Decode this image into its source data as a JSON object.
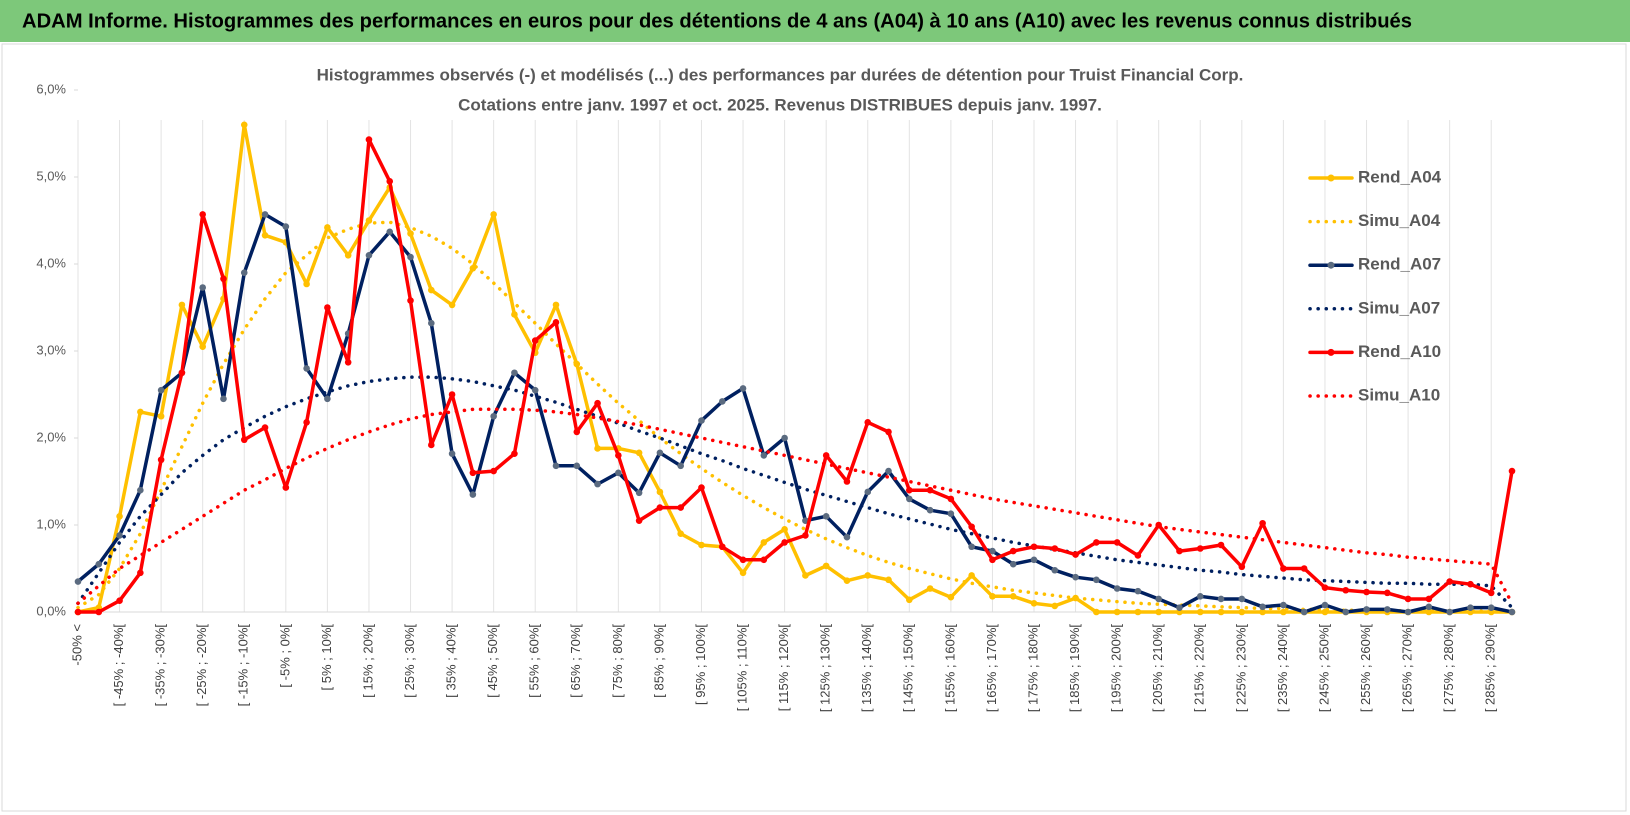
{
  "header": {
    "title": "ADAM Informe. Histogrammes des performances en euros pour des détentions de 4 ans (A04) à 10 ans (A10) avec les revenus connus distribués"
  },
  "chart_data": {
    "type": "line",
    "title": "Histogrammes observés (-) et modélisés (...) des performances par durées de détention pour Truist Financial Corp.",
    "subtitle": "Cotations entre janv. 1997 et oct. 2025.  Revenus DISTRIBUES depuis janv. 1997.",
    "categories": [
      "-50% <",
      null,
      "[ -45% ; -40%[",
      null,
      "[ -35% ; -30%[",
      null,
      "[ -25% ; -20%[",
      null,
      "[ -15% ; -10%[",
      null,
      "[ -5% ; 0%[",
      null,
      "[ 5% ; 10%[",
      null,
      "[ 15% ; 20%[",
      null,
      "[ 25% ; 30%[",
      null,
      "[ 35% ; 40%[",
      null,
      "[ 45% ; 50%[",
      null,
      "[ 55% ; 60%[",
      null,
      "[ 65% ; 70%[",
      null,
      "[ 75% ; 80%[",
      null,
      "[ 85% ; 90%[",
      null,
      "[ 95% ; 100%[",
      null,
      "[ 105% ; 110%[",
      null,
      "[ 115% ; 120%[",
      null,
      "[ 125% ; 130%[",
      null,
      "[ 135% ; 140%[",
      null,
      "[ 145% ; 150%[",
      null,
      "[ 155% ; 160%[",
      null,
      "[ 165% ; 170%[",
      null,
      "[ 175% ; 180%[",
      null,
      "[ 185% ; 190%[",
      null,
      "[ 195% ; 200%[",
      null,
      "[ 205% ; 210%[",
      null,
      "[ 215% ; 220%[",
      null,
      "[ 225% ; 230%[",
      null,
      "[ 235% ; 240%[",
      null,
      "[ 245% ; 250%[",
      null,
      "[ 255% ; 260%[",
      null,
      "[ 265% ; 270%[",
      null,
      "[ 275% ; 280%[",
      null,
      "[ 285% ; 290%[",
      null
    ],
    "series": [
      {
        "name": "Rend_A04",
        "color": "#FFC000",
        "style": "solid",
        "markers": true,
        "values": [
          0,
          0.05,
          1.1,
          2.3,
          2.25,
          3.53,
          3.05,
          3.6,
          5.6,
          4.33,
          4.25,
          3.77,
          4.42,
          4.1,
          4.5,
          4.88,
          4.35,
          3.7,
          3.53,
          3.95,
          4.57,
          3.42,
          2.98,
          3.53,
          2.85,
          1.88,
          1.88,
          1.83,
          1.38,
          0.9,
          0.77,
          0.75,
          0.45,
          0.8,
          0.95,
          0.42,
          0.53,
          0.36,
          0.42,
          0.37,
          0.14,
          0.27,
          0.17,
          0.42,
          0.18,
          0.18,
          0.1,
          0.07,
          0.16,
          0,
          0,
          0,
          0,
          0,
          0,
          0,
          0,
          0,
          0,
          0,
          0,
          0,
          0,
          0,
          0,
          0,
          0,
          0,
          0,
          0
        ]
      },
      {
        "name": "Simu_A04",
        "color": "#FFC000",
        "style": "dotted",
        "markers": false,
        "values": [
          0.05,
          0.2,
          0.5,
          0.9,
          1.4,
          1.9,
          2.4,
          2.85,
          3.25,
          3.6,
          3.9,
          4.1,
          4.3,
          4.4,
          4.47,
          4.48,
          4.42,
          4.32,
          4.18,
          4.0,
          3.78,
          3.55,
          3.32,
          3.08,
          2.85,
          2.62,
          2.4,
          2.2,
          2.0,
          1.82,
          1.65,
          1.49,
          1.34,
          1.2,
          1.07,
          0.95,
          0.84,
          0.74,
          0.65,
          0.57,
          0.5,
          0.44,
          0.38,
          0.33,
          0.29,
          0.25,
          0.22,
          0.19,
          0.16,
          0.14,
          0.12,
          0.1,
          0.09,
          0.08,
          0.07,
          0.06,
          0.05,
          0.04,
          0.04,
          0.03,
          0.03,
          0.02,
          0.02,
          0.02,
          0.01,
          0.01,
          0.01,
          0.01,
          0.01,
          0.01
        ]
      },
      {
        "name": "Rend_A07",
        "color": "#002060",
        "style": "solid",
        "markers": true,
        "values": [
          0.35,
          0.55,
          0.88,
          1.4,
          2.55,
          2.75,
          3.73,
          2.45,
          3.9,
          4.57,
          4.43,
          2.8,
          2.45,
          3.2,
          4.1,
          4.37,
          4.08,
          3.32,
          1.82,
          1.35,
          2.25,
          2.75,
          2.55,
          1.68,
          1.68,
          1.47,
          1.6,
          1.37,
          1.83,
          1.68,
          2.2,
          2.42,
          2.57,
          1.8,
          2.0,
          1.05,
          1.1,
          0.86,
          1.38,
          1.62,
          1.3,
          1.17,
          1.13,
          0.75,
          0.7,
          0.55,
          0.6,
          0.48,
          0.4,
          0.37,
          0.27,
          0.24,
          0.15,
          0.05,
          0.18,
          0.15,
          0.15,
          0.06,
          0.08,
          0,
          0.08,
          0,
          0.03,
          0.03,
          0,
          0.06,
          0,
          0.05,
          0.05,
          0
        ]
      },
      {
        "name": "Simu_A07",
        "color": "#002060",
        "style": "dotted",
        "markers": false,
        "values": [
          0.1,
          0.45,
          0.8,
          1.1,
          1.35,
          1.6,
          1.8,
          1.98,
          2.12,
          2.25,
          2.36,
          2.45,
          2.53,
          2.6,
          2.65,
          2.68,
          2.7,
          2.7,
          2.68,
          2.65,
          2.6,
          2.55,
          2.48,
          2.41,
          2.33,
          2.25,
          2.17,
          2.08,
          2.0,
          1.91,
          1.82,
          1.74,
          1.65,
          1.57,
          1.49,
          1.41,
          1.34,
          1.27,
          1.2,
          1.13,
          1.07,
          1.01,
          0.95,
          0.9,
          0.85,
          0.8,
          0.76,
          0.72,
          0.68,
          0.64,
          0.6,
          0.57,
          0.54,
          0.51,
          0.48,
          0.46,
          0.43,
          0.41,
          0.39,
          0.37,
          0.36,
          0.35,
          0.34,
          0.33,
          0.33,
          0.32,
          0.32,
          0.32,
          0.3,
          0.05
        ]
      },
      {
        "name": "Rend_A10",
        "color": "#FF0000",
        "style": "solid",
        "markers": true,
        "values": [
          0,
          0,
          0.13,
          0.45,
          1.75,
          2.75,
          4.57,
          3.83,
          1.98,
          2.12,
          1.43,
          2.18,
          3.5,
          2.87,
          5.43,
          4.95,
          3.58,
          1.92,
          2.5,
          1.6,
          1.62,
          1.82,
          3.12,
          3.33,
          2.07,
          2.4,
          1.8,
          1.05,
          1.2,
          1.2,
          1.43,
          0.75,
          0.6,
          0.6,
          0.8,
          0.88,
          1.8,
          1.5,
          2.18,
          2.07,
          1.4,
          1.4,
          1.3,
          0.98,
          0.6,
          0.7,
          0.75,
          0.73,
          0.66,
          0.8,
          0.8,
          0.65,
          1.0,
          0.7,
          0.73,
          0.77,
          0.52,
          1.02,
          0.5,
          0.5,
          0.28,
          0.25,
          0.23,
          0.22,
          0.15,
          0.15,
          0.35,
          0.32,
          0.22,
          1.62
        ]
      },
      {
        "name": "Simu_A10",
        "color": "#FF0000",
        "style": "dotted",
        "markers": false,
        "values": [
          0.1,
          0.3,
          0.5,
          0.65,
          0.8,
          0.95,
          1.1,
          1.25,
          1.4,
          1.52,
          1.65,
          1.77,
          1.88,
          1.98,
          2.07,
          2.15,
          2.22,
          2.27,
          2.3,
          2.33,
          2.33,
          2.33,
          2.32,
          2.3,
          2.27,
          2.23,
          2.19,
          2.15,
          2.1,
          2.05,
          2.0,
          1.95,
          1.9,
          1.85,
          1.8,
          1.75,
          1.7,
          1.65,
          1.6,
          1.55,
          1.5,
          1.45,
          1.4,
          1.35,
          1.3,
          1.26,
          1.22,
          1.18,
          1.14,
          1.1,
          1.06,
          1.02,
          0.98,
          0.95,
          0.92,
          0.89,
          0.86,
          0.83,
          0.8,
          0.77,
          0.74,
          0.71,
          0.68,
          0.66,
          0.63,
          0.61,
          0.59,
          0.57,
          0.55,
          0.1
        ]
      }
    ],
    "ylim": [
      0,
      6
    ],
    "yticks": [
      {
        "value": 0,
        "label": "0,0%"
      },
      {
        "value": 1,
        "label": "1,0%"
      },
      {
        "value": 2,
        "label": "2,0%"
      },
      {
        "value": 3,
        "label": "3,0%"
      },
      {
        "value": 4,
        "label": "4,0%"
      },
      {
        "value": 5,
        "label": "5,0%"
      },
      {
        "value": 6,
        "label": "6,0%"
      }
    ],
    "grid": true,
    "legend": "right"
  }
}
